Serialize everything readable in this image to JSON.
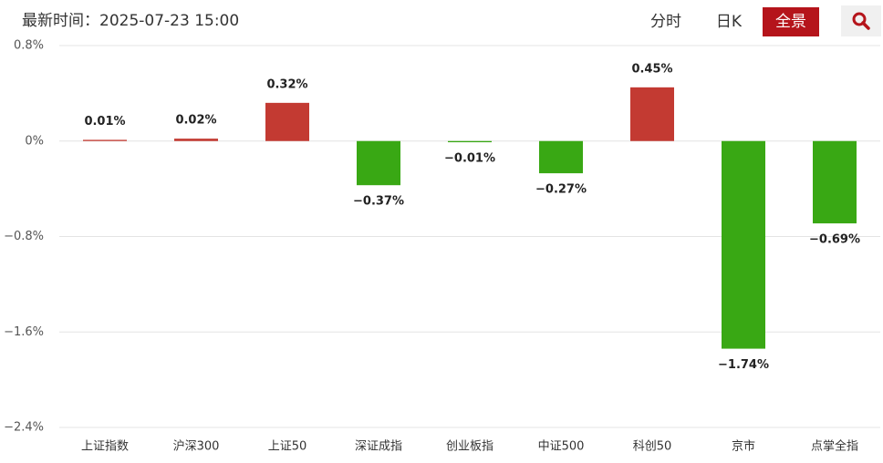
{
  "header": {
    "time_label": "最新时间：2025-07-23 15:00",
    "tabs": [
      "分时",
      "日K",
      "全景"
    ]
  },
  "chart_data": {
    "type": "bar",
    "categories": [
      "上证指数",
      "沪深300",
      "上证50",
      "深证成指",
      "创业板指",
      "中证500",
      "科创50",
      "京市",
      "点掌全指"
    ],
    "values": [
      0.01,
      0.02,
      0.32,
      -0.37,
      -0.01,
      -0.27,
      0.45,
      -1.74,
      -0.69
    ],
    "value_labels": [
      "0.01%",
      "0.02%",
      "0.32%",
      "−0.37%",
      "−0.01%",
      "−0.27%",
      "0.45%",
      "−1.74%",
      "−0.69%"
    ],
    "colors": [
      "#c33a32",
      "#c33a32",
      "#c33a32",
      "#39a814",
      "#39a814",
      "#39a814",
      "#c33a32",
      "#39a814",
      "#39a814"
    ],
    "ylim": [
      -2.4,
      0.8
    ],
    "yticks": [
      {
        "value": 0.8,
        "label": "0.8%"
      },
      {
        "value": 0,
        "label": "0%"
      },
      {
        "value": -0.8,
        "label": "−0.8%"
      },
      {
        "value": -1.6,
        "label": "−1.6%"
      },
      {
        "value": -2.4,
        "label": "−2.4%"
      }
    ],
    "grid": true
  }
}
